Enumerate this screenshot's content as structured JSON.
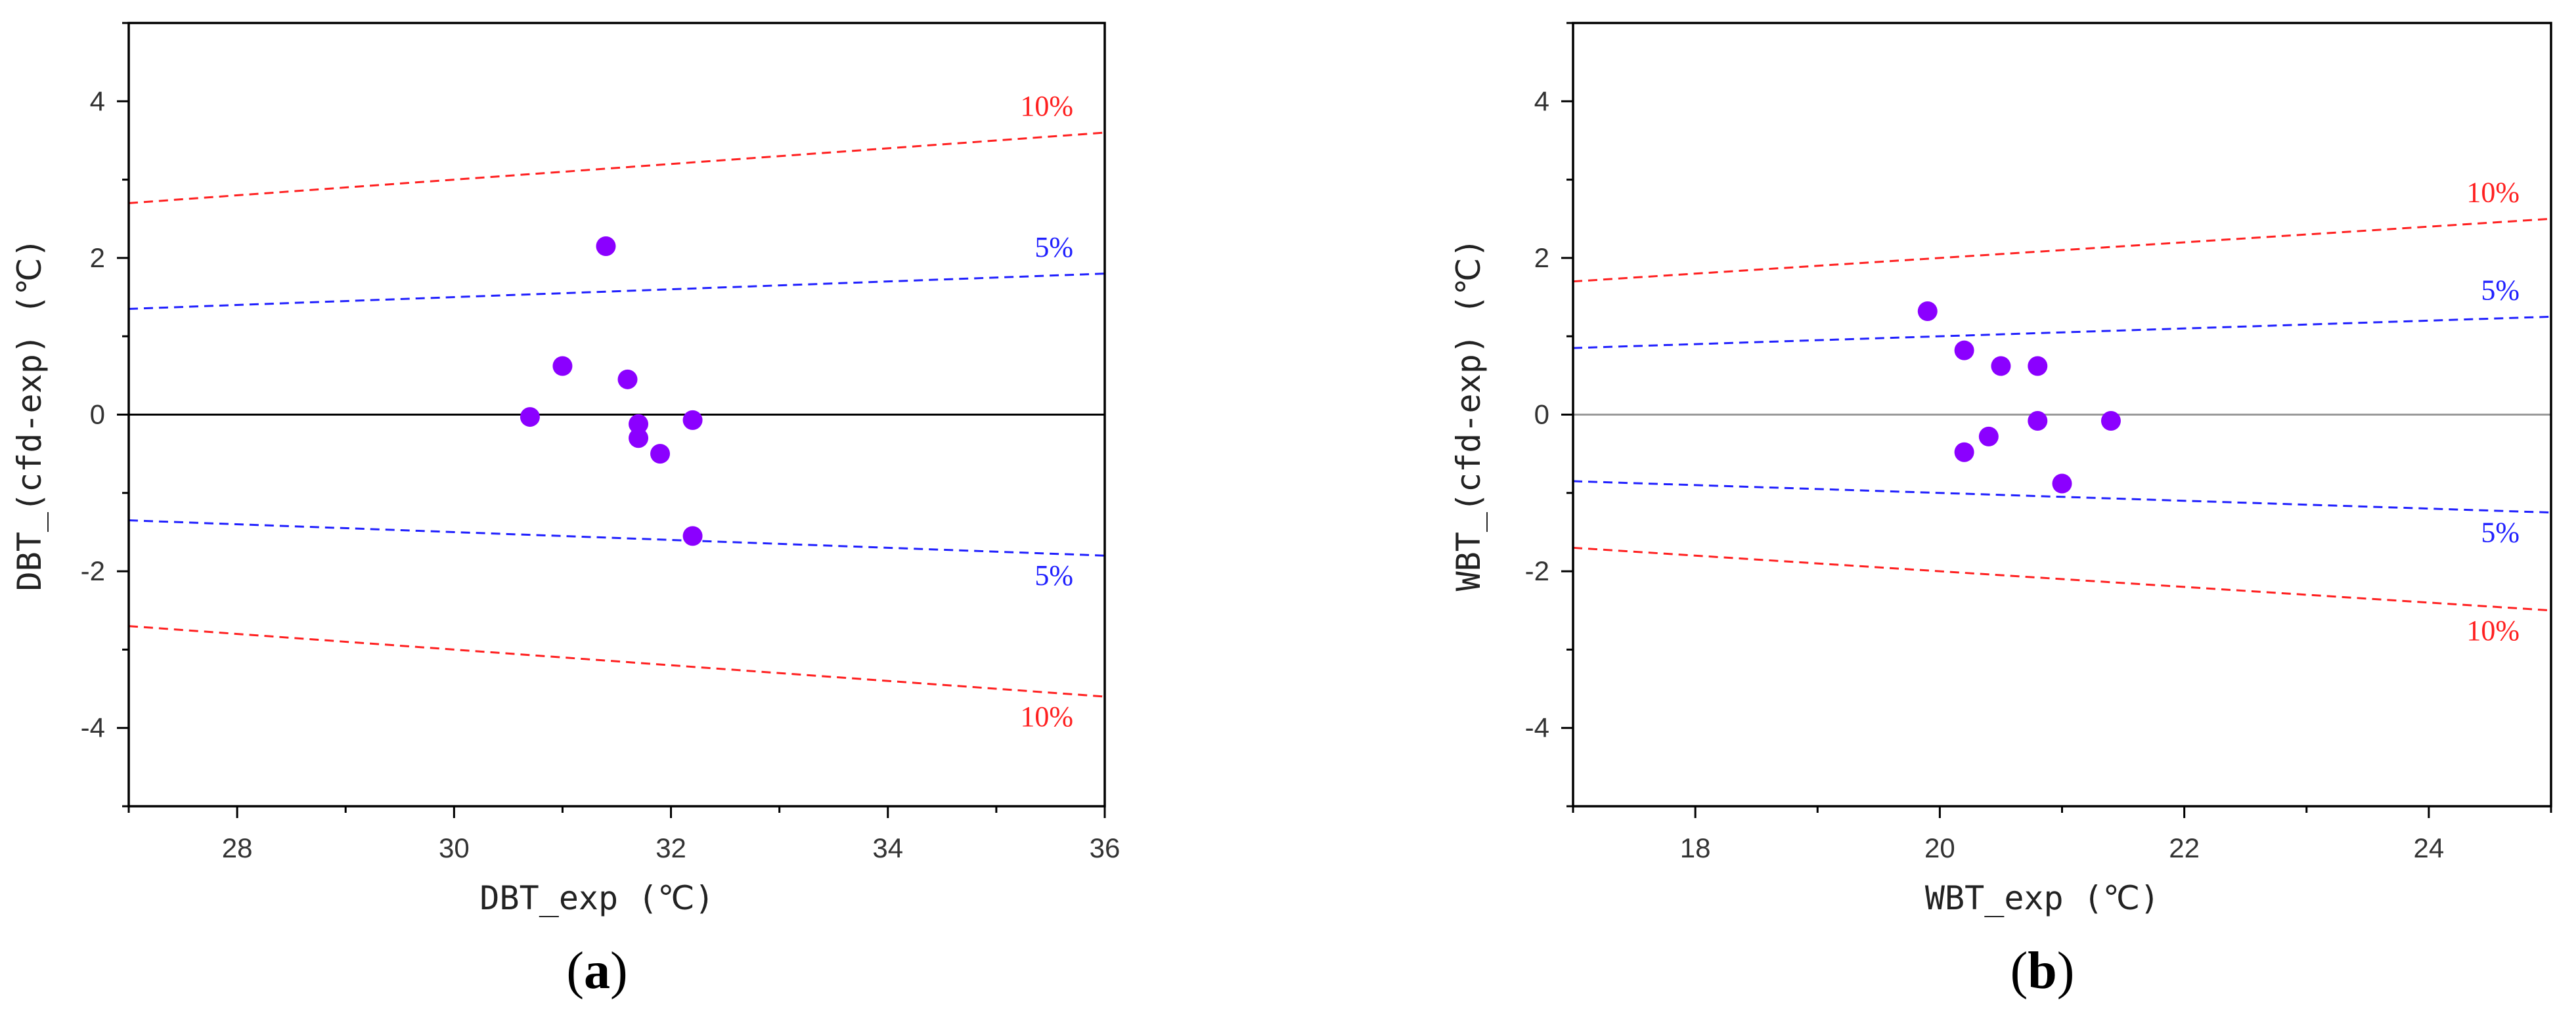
{
  "colors": {
    "point": "#8B00FF",
    "ten_percent": "#FF2020",
    "five_percent": "#2020FF",
    "zero_a": "#000000",
    "zero_b": "#999999",
    "axis": "#000000"
  },
  "chart_data": [
    {
      "type": "scatter",
      "panel_label": {
        "open": "(",
        "letter": "a",
        "close": ")"
      },
      "xlabel": "DBT_exp (℃)",
      "ylabel": "DBT_(cfd-exp) (℃)",
      "xlim": [
        27,
        36
      ],
      "ylim": [
        -5,
        5
      ],
      "xticks": [
        28,
        30,
        32,
        34,
        36
      ],
      "xtick_labels": [
        "28",
        "30",
        "32",
        "34",
        "36"
      ],
      "yticks": [
        -4,
        -2,
        0,
        2,
        4
      ],
      "ytick_labels": [
        "-4",
        "-2",
        "0",
        "2",
        "4"
      ],
      "points": [
        {
          "x": 30.7,
          "y": -0.03
        },
        {
          "x": 31.0,
          "y": 0.62
        },
        {
          "x": 31.4,
          "y": 2.15
        },
        {
          "x": 31.6,
          "y": 0.45
        },
        {
          "x": 31.7,
          "y": -0.12
        },
        {
          "x": 31.7,
          "y": -0.3
        },
        {
          "x": 31.9,
          "y": -0.5
        },
        {
          "x": 32.2,
          "y": -0.07
        },
        {
          "x": 32.2,
          "y": -1.55
        }
      ],
      "reference_lines": [
        {
          "name": "+10%",
          "slope": 0.1,
          "color_key": "ten_percent",
          "label": "10%"
        },
        {
          "name": "+5%",
          "slope": 0.05,
          "color_key": "five_percent",
          "label": "5%"
        },
        {
          "name": "-5%",
          "slope": -0.05,
          "color_key": "five_percent",
          "label": "5%"
        },
        {
          "name": "-10%",
          "slope": -0.1,
          "color_key": "ten_percent",
          "label": "10%"
        }
      ],
      "zero_line_color_key": "zero_a"
    },
    {
      "type": "scatter",
      "panel_label": {
        "open": "(",
        "letter": "b",
        "close": ")"
      },
      "xlabel": "WBT_exp (℃)",
      "ylabel": "WBT_(cfd-exp) (℃)",
      "xlim": [
        17,
        25
      ],
      "ylim": [
        -5,
        5
      ],
      "xticks": [
        18,
        20,
        22,
        24
      ],
      "xtick_labels": [
        "18",
        "20",
        "22",
        "24"
      ],
      "yticks": [
        -4,
        -2,
        0,
        2,
        4
      ],
      "ytick_labels": [
        "-4",
        "-2",
        "0",
        "2",
        "4"
      ],
      "points": [
        {
          "x": 19.9,
          "y": 1.32
        },
        {
          "x": 20.2,
          "y": 0.82
        },
        {
          "x": 20.2,
          "y": -0.48
        },
        {
          "x": 20.4,
          "y": -0.28
        },
        {
          "x": 20.5,
          "y": 0.62
        },
        {
          "x": 20.8,
          "y": 0.62
        },
        {
          "x": 20.8,
          "y": -0.08
        },
        {
          "x": 21.0,
          "y": -0.88
        },
        {
          "x": 21.4,
          "y": -0.08
        }
      ],
      "reference_lines": [
        {
          "name": "+10%",
          "slope": 0.1,
          "color_key": "ten_percent",
          "label": "10%"
        },
        {
          "name": "+5%",
          "slope": 0.05,
          "color_key": "five_percent",
          "label": "5%"
        },
        {
          "name": "-5%",
          "slope": -0.05,
          "color_key": "five_percent",
          "label": "5%"
        },
        {
          "name": "-10%",
          "slope": -0.1,
          "color_key": "ten_percent",
          "label": "10%"
        }
      ],
      "zero_line_color_key": "zero_b"
    }
  ]
}
